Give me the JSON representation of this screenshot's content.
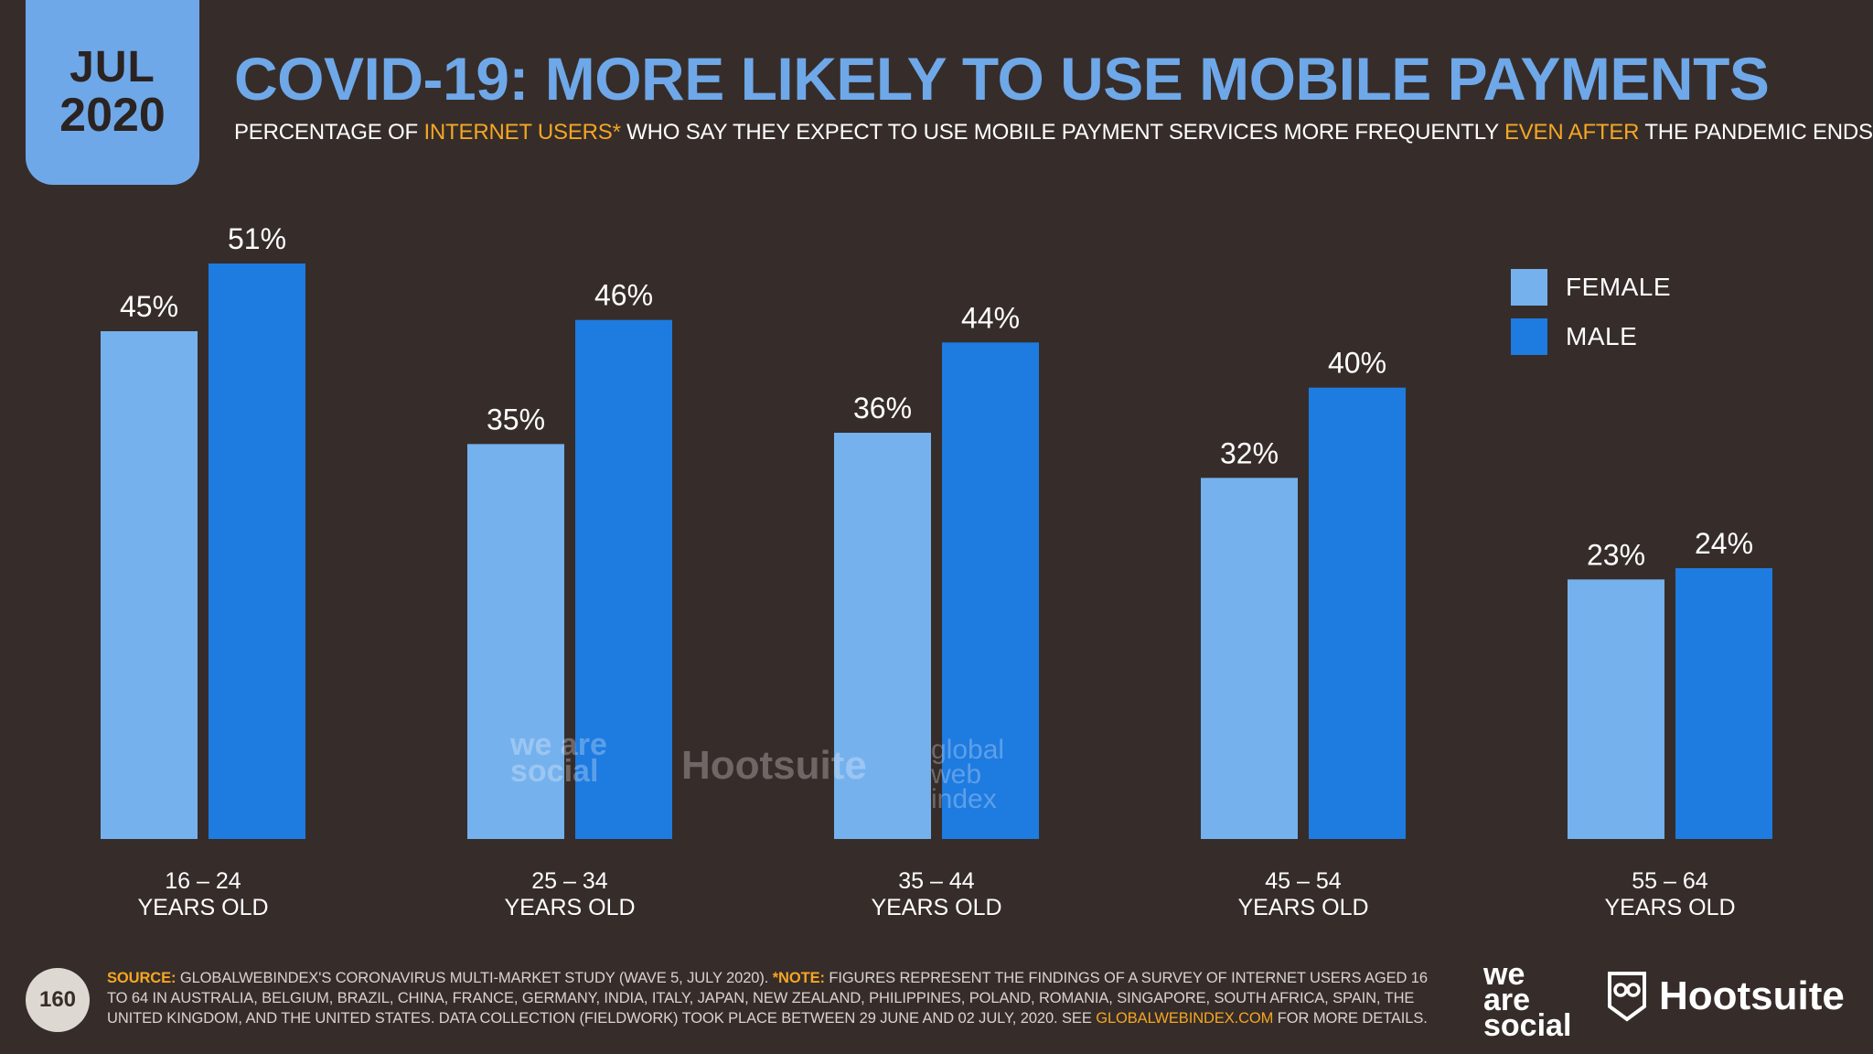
{
  "header": {
    "month": "JUL",
    "year": "2020",
    "title": "COVID-19: MORE LIKELY TO USE MOBILE PAYMENTS",
    "subtitle_a": "PERCENTAGE OF ",
    "subtitle_b": "INTERNET USERS*",
    "subtitle_c": " WHO SAY THEY EXPECT TO USE MOBILE PAYMENT SERVICES MORE FREQUENTLY ",
    "subtitle_d": "EVEN AFTER",
    "subtitle_e": " THE PANDEMIC ENDS"
  },
  "chart_data": {
    "type": "bar",
    "title": "COVID-19: MORE LIKELY TO USE MOBILE PAYMENTS",
    "categories": [
      {
        "line1": "16 – 24",
        "line2": "YEARS OLD"
      },
      {
        "line1": "25 – 34",
        "line2": "YEARS OLD"
      },
      {
        "line1": "35 – 44",
        "line2": "YEARS OLD"
      },
      {
        "line1": "45 – 54",
        "line2": "YEARS OLD"
      },
      {
        "line1": "55 – 64",
        "line2": "YEARS OLD"
      }
    ],
    "series": [
      {
        "name": "FEMALE",
        "color": "#75b1ed",
        "values": [
          45,
          35,
          36,
          32,
          23
        ]
      },
      {
        "name": "MALE",
        "color": "#1e7be0",
        "values": [
          51,
          46,
          44,
          40,
          24
        ]
      }
    ],
    "value_suffix": "%",
    "ylim": [
      0,
      51
    ],
    "xlabel": "",
    "ylabel": "",
    "legend_position": "top-right"
  },
  "watermarks": {
    "was": "we are social",
    "hootsuite": "Hootsuite",
    "gwi": "global web index"
  },
  "footer": {
    "page_number": "160",
    "source_label": "SOURCE:",
    "source_text": " GLOBALWEBINDEX'S CORONAVIRUS MULTI-MARKET STUDY (WAVE 5, JULY 2020). ",
    "note_label": "*NOTE:",
    "note_text": " FIGURES REPRESENT THE FINDINGS OF A SURVEY OF INTERNET USERS AGED 16 TO 64 IN AUSTRALIA, BELGIUM, BRAZIL, CHINA, FRANCE, GERMANY, INDIA, ITALY, JAPAN, NEW ZEALAND, PHILIPPINES, POLAND, ROMANIA, SINGAPORE, SOUTH AFRICA, SPAIN, THE UNITED KINGDOM, AND THE UNITED STATES. DATA COLLECTION (FIELDWORK) TOOK PLACE BETWEEN 29 JUNE AND 02 JULY, 2020. SEE ",
    "link_text": "GLOBALWEBINDEX.COM",
    "end_text": " FOR MORE DETAILS.",
    "logo_was_1": "we",
    "logo_was_2": "are",
    "logo_was_3": "social",
    "logo_hs": "Hootsuite"
  }
}
